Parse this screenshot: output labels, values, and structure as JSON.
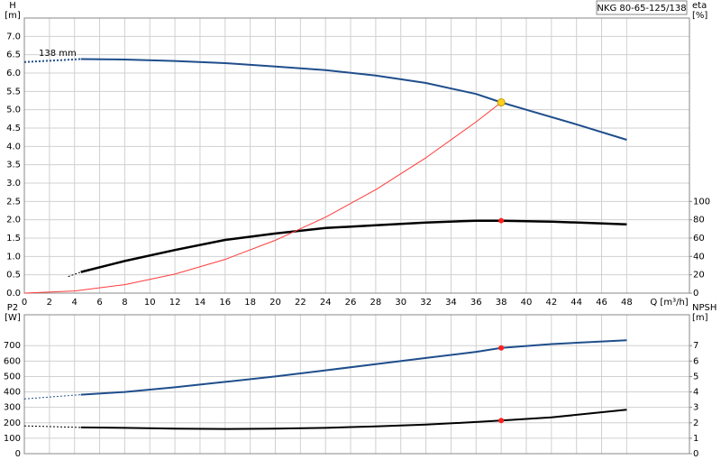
{
  "chart_data": [
    {
      "type": "line",
      "title": "NKG 80-65-125/138",
      "ylabel": "H",
      "yunit": "[m]",
      "y2label": "eta",
      "y2unit": "[%]",
      "xlabel": "Q [m³/h]",
      "annotation": "138 mm",
      "xlim": [
        0,
        53
      ],
      "xticks": [
        0,
        2,
        4,
        6,
        8,
        10,
        12,
        14,
        16,
        18,
        20,
        22,
        24,
        26,
        28,
        30,
        32,
        34,
        36,
        38,
        40,
        42,
        44,
        46,
        48
      ],
      "ylim": [
        0,
        7.5
      ],
      "yticks": [
        {
          "value": 0,
          "label": "0.0"
        },
        {
          "value": 0.5,
          "label": "0.5"
        },
        {
          "value": 1,
          "label": "1.0"
        },
        {
          "value": 1.5,
          "label": "1.5"
        },
        {
          "value": 2,
          "label": "2.0"
        },
        {
          "value": 2.5,
          "label": "2.5"
        },
        {
          "value": 3,
          "label": "3.0"
        },
        {
          "value": 3.5,
          "label": "3.5"
        },
        {
          "value": 4,
          "label": "4.0"
        },
        {
          "value": 4.5,
          "label": "4.5"
        },
        {
          "value": 5,
          "label": "5.0"
        },
        {
          "value": 5.5,
          "label": "5.5"
        },
        {
          "value": 6,
          "label": "6.0"
        },
        {
          "value": 6.5,
          "label": "6.5"
        },
        {
          "value": 7,
          "label": "7.0"
        }
      ],
      "y2lim": [
        0,
        300
      ],
      "y2ticks": [
        0,
        20,
        40,
        60,
        80,
        100
      ],
      "grid": true,
      "xtick_labels": true,
      "series": [
        {
          "color": "#1f4e8c",
          "width": 2,
          "dash": true,
          "axis": "y",
          "x": [
            0,
            4.5
          ],
          "values": [
            6.3,
            6.38
          ]
        },
        {
          "color": "#1f4e8c",
          "width": 2,
          "dash": false,
          "axis": "y",
          "x": [
            4.5,
            8,
            12,
            16,
            20,
            24,
            28,
            32,
            36,
            38,
            40,
            44,
            48
          ],
          "values": [
            6.38,
            6.37,
            6.33,
            6.27,
            6.18,
            6.08,
            5.93,
            5.73,
            5.43,
            5.2,
            5.0,
            4.6,
            4.18
          ]
        },
        {
          "color": "#000000",
          "width": 1,
          "dash": true,
          "axis": "y2",
          "x": [
            3.5,
            4.5
          ],
          "values": [
            18,
            23
          ]
        },
        {
          "color": "#000000",
          "width": 2.5,
          "dash": false,
          "axis": "y2",
          "x": [
            4.5,
            8,
            12,
            16,
            20,
            24,
            28,
            32,
            36,
            38,
            42,
            48
          ],
          "values": [
            23,
            35,
            47,
            58,
            65,
            71,
            74,
            77,
            79,
            79,
            78,
            75
          ]
        },
        {
          "color": "#ff3b3b",
          "width": 1,
          "dash": false,
          "axis": "y",
          "x": [
            0,
            4,
            8,
            12,
            16,
            20,
            24,
            28,
            32,
            36,
            38
          ],
          "values": [
            0,
            0.058,
            0.23,
            0.52,
            0.92,
            1.44,
            2.07,
            2.82,
            3.69,
            4.67,
            5.2
          ]
        }
      ],
      "points": [
        {
          "x": 38,
          "value": 5.2,
          "axis": "y",
          "color": "#ffd21f"
        },
        {
          "x": 38,
          "value": 79,
          "axis": "y2",
          "color": "#ff2020"
        }
      ]
    },
    {
      "type": "line",
      "ylabel": "P2",
      "yunit": "[W]",
      "y2label": "NPSH",
      "y2unit": "[m]",
      "xlim": [
        0,
        53
      ],
      "xticks": [
        0,
        2,
        4,
        6,
        8,
        10,
        12,
        14,
        16,
        18,
        20,
        22,
        24,
        26,
        28,
        30,
        32,
        34,
        36,
        38,
        40,
        42,
        44,
        46,
        48
      ],
      "ylim": [
        0,
        900
      ],
      "yticks": [
        0,
        100,
        200,
        300,
        400,
        500,
        600,
        700
      ],
      "y2lim": [
        0,
        9
      ],
      "y2ticks": [
        0,
        1,
        2,
        3,
        4,
        5,
        6,
        7
      ],
      "grid": true,
      "xtick_labels": false,
      "series": [
        {
          "color": "#1f4e8c",
          "width": 1,
          "dash": true,
          "axis": "y",
          "x": [
            0,
            4.5
          ],
          "values": [
            355,
            382
          ]
        },
        {
          "color": "#1f4e8c",
          "width": 2,
          "dash": false,
          "axis": "y",
          "x": [
            4.5,
            8,
            12,
            16,
            20,
            24,
            28,
            32,
            36,
            38,
            42,
            48
          ],
          "values": [
            382,
            400,
            430,
            465,
            500,
            540,
            580,
            620,
            660,
            685,
            710,
            735
          ]
        },
        {
          "color": "#000000",
          "width": 1,
          "dash": true,
          "axis": "y2",
          "x": [
            0,
            4.5
          ],
          "values": [
            1.8,
            1.7
          ]
        },
        {
          "color": "#000000",
          "width": 2,
          "dash": false,
          "axis": "y2",
          "x": [
            4.5,
            8,
            12,
            16,
            20,
            24,
            28,
            32,
            36,
            38,
            42,
            48
          ],
          "values": [
            1.7,
            1.67,
            1.62,
            1.6,
            1.62,
            1.67,
            1.77,
            1.88,
            2.05,
            2.15,
            2.35,
            2.85
          ]
        }
      ],
      "points": [
        {
          "x": 38,
          "value": 685,
          "axis": "y",
          "color": "#ff2020"
        },
        {
          "x": 38,
          "value": 2.15,
          "axis": "y2",
          "color": "#ff2020"
        }
      ]
    }
  ]
}
